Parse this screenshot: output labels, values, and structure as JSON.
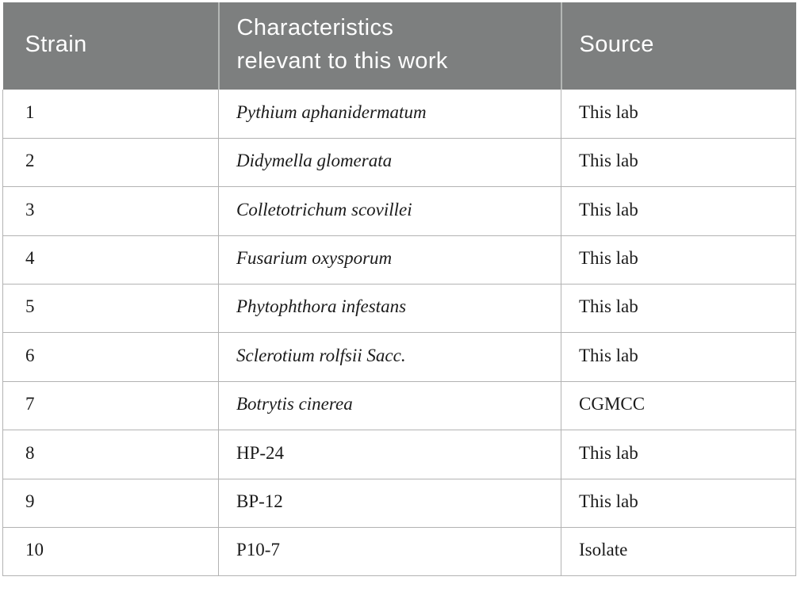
{
  "colors": {
    "page_bg": "#ffffff",
    "header_bg": "#7d7f7f",
    "header_text": "#ffffff",
    "header_divider": "#b4b7b5",
    "border": "#b3b3b3",
    "body_text": "#1b1b1b"
  },
  "table": {
    "columns": [
      {
        "id": "strain",
        "lines": [
          "Strain"
        ]
      },
      {
        "id": "characteristics",
        "lines": [
          "Characteristics",
          "relevant to this work"
        ]
      },
      {
        "id": "source",
        "lines": [
          "Source"
        ]
      }
    ],
    "rows": [
      {
        "strain": "1",
        "characteristics": "Pythium aphanidermatum",
        "characteristics_italic": true,
        "source": "This lab"
      },
      {
        "strain": "2",
        "characteristics": "Didymella glomerata",
        "characteristics_italic": true,
        "source": "This lab"
      },
      {
        "strain": "3",
        "characteristics": "Colletotrichum scovillei",
        "characteristics_italic": true,
        "source": "This lab"
      },
      {
        "strain": "4",
        "characteristics": "Fusarium oxysporum",
        "characteristics_italic": true,
        "source": "This lab"
      },
      {
        "strain": "5",
        "characteristics": "Phytophthora infestans",
        "characteristics_italic": true,
        "source": "This lab"
      },
      {
        "strain": "6",
        "characteristics": "Sclerotium rolfsii Sacc.",
        "characteristics_italic": true,
        "source": "This lab"
      },
      {
        "strain": "7",
        "characteristics": "Botrytis cinerea",
        "characteristics_italic": true,
        "source": "CGMCC"
      },
      {
        "strain": "8",
        "characteristics": "HP-24",
        "characteristics_italic": false,
        "source": "This lab"
      },
      {
        "strain": "9",
        "characteristics": "BP-12",
        "characteristics_italic": false,
        "source": "This lab"
      },
      {
        "strain": "10",
        "characteristics": "P10-7",
        "characteristics_italic": false,
        "source": "Isolate"
      }
    ]
  }
}
